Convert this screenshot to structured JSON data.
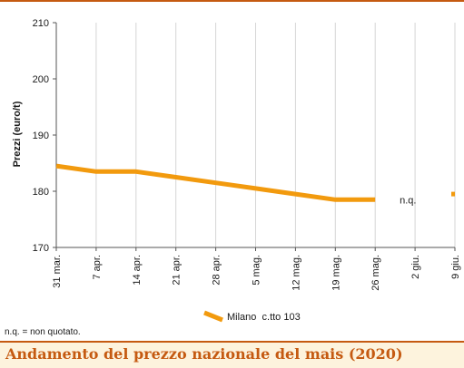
{
  "chart_data": {
    "type": "line",
    "title": "Andamento del prezzo nazionale del mais (2020)",
    "ylabel": "Prezzi (euro/t)",
    "xlabel": "",
    "ylim": [
      170,
      210
    ],
    "yticks": [
      170,
      180,
      190,
      200,
      210
    ],
    "categories": [
      "31 mar.",
      "7 apr.",
      "14 apr.",
      "21 apr.",
      "28 apr.",
      "5 mag.",
      "12 mag.",
      "19 mag.",
      "26 mag.",
      "2 giu.",
      "9 giu."
    ],
    "series": [
      {
        "name": "Milano  c.tto 103",
        "color": "#f29a0e",
        "values": [
          184.5,
          183.5,
          183.5,
          182.5,
          181.5,
          180.5,
          179.5,
          178.5,
          178.5,
          null,
          179.5
        ]
      }
    ],
    "annotations": [
      {
        "text": "n.q.",
        "category": "2 giu."
      }
    ],
    "grid": "vertical",
    "legend": "bottom-center"
  },
  "footnote": "n.q. = non quotato.",
  "colors": {
    "accent": "#c55a11",
    "line": "#f29a0e",
    "title_background": "#fdf3dd"
  }
}
